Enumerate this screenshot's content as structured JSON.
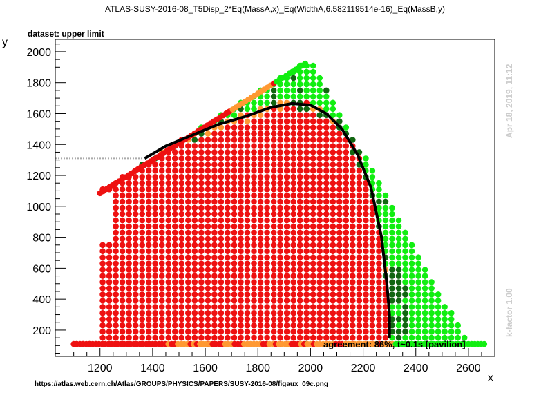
{
  "header": {
    "title": "ATLAS-SUSY-2016-08_T5Disp_2*Eq(MassA,x)_Eq(WidthA,6.582119514e-16)_Eq(MassB,y)",
    "dataset_label": "dataset: upper limit"
  },
  "side_labels": {
    "timestamp": "Apr 18, 2019, 11:12",
    "kfactor": "k-factor 1.00"
  },
  "footer": {
    "source_url": "https://atlas.web.cern.ch/Atlas/GROUPS/PHYSICS/PAPERS/SUSY-2016-08/figaux_09c.png",
    "agreement": "agreement: 86%, t~0.1s [pavilion]"
  },
  "colors": {
    "excluded_red": "#ee1111",
    "excluded_orange": "#ff9933",
    "allowed_green": "#11ee11",
    "allowed_darkgreen": "#116611",
    "contour": "#000000"
  },
  "chart_data": {
    "type": "scatter",
    "xlabel": "x",
    "ylabel": "y",
    "xlim": [
      1030,
      2700
    ],
    "ylim": [
      30,
      2080
    ],
    "xticks": [
      1200,
      1400,
      1600,
      1800,
      2000,
      2200,
      2400,
      2600
    ],
    "yticks": [
      200,
      400,
      600,
      800,
      1000,
      1200,
      1400,
      1600,
      1800,
      2000
    ],
    "grid": false,
    "reference_line_y": 1310,
    "series": [
      {
        "category": "exclusion contour",
        "points": [
          [
            1370,
            1310
          ],
          [
            1450,
            1390
          ],
          [
            1550,
            1460
          ],
          [
            1650,
            1530
          ],
          [
            1750,
            1580
          ],
          [
            1850,
            1640
          ],
          [
            1930,
            1665
          ],
          [
            2000,
            1655
          ],
          [
            2060,
            1600
          ],
          [
            2120,
            1500
          ],
          [
            2180,
            1330
          ],
          [
            2230,
            1120
          ],
          [
            2270,
            800
          ],
          [
            2290,
            500
          ],
          [
            2300,
            300
          ],
          [
            2300,
            150
          ]
        ]
      }
    ],
    "regions": [
      {
        "category": "excluded (red)",
        "x_range": [
          1110,
          2300
        ],
        "y_upper": "approx. 1100 at x=1200 rising to 1650 at x=2000, then falling to 100 at x=2300"
      },
      {
        "category": "borderline (orange)",
        "location": "along the upper diagonal edge, near x=1850-2000 y=1500-1700, at x~2290 y~300-900, and along y~110"
      },
      {
        "category": "allowed (green)",
        "location": "x from 2000 to 2600, y from 2000 at x=2000 falling to 110 at x=2600"
      },
      {
        "category": "allowed (dark green)",
        "location": "near the contour at x~1950-2350, and at x~2350 y~100-600"
      }
    ]
  }
}
